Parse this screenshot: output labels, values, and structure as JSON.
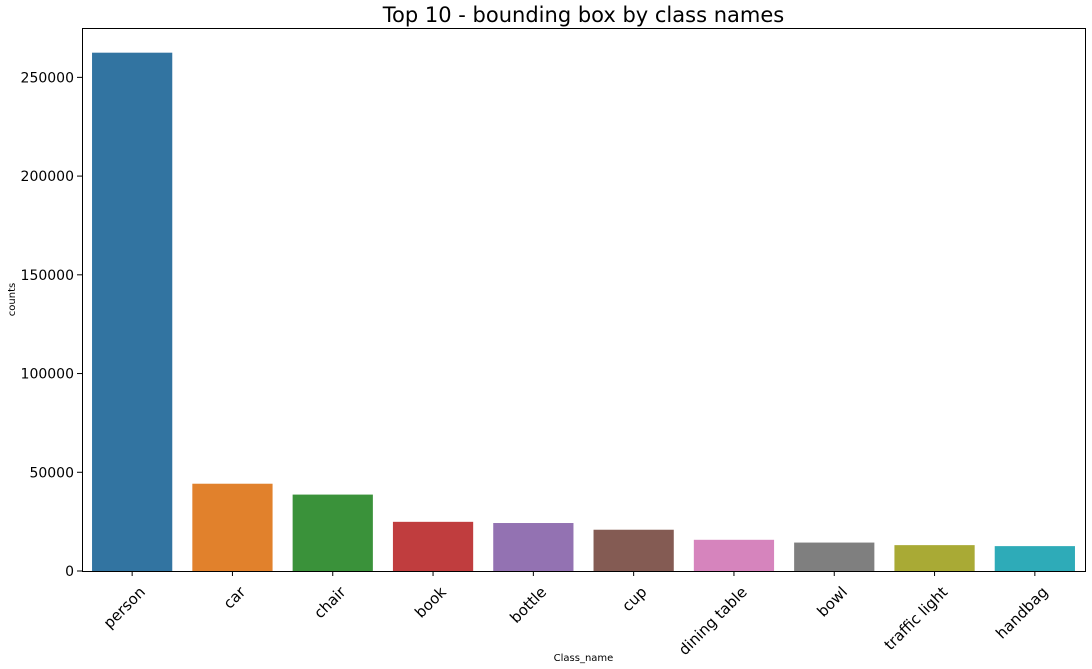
{
  "chart_data": {
    "type": "bar",
    "title": "Top 10 - bounding box by class names",
    "xlabel": "Class_name",
    "ylabel": "counts",
    "categories": [
      "person",
      "car",
      "chair",
      "book",
      "bottle",
      "cup",
      "dining table",
      "bowl",
      "traffic light",
      "handbag"
    ],
    "values": [
      262500,
      44200,
      38700,
      24900,
      24300,
      20900,
      15800,
      14400,
      13100,
      12600
    ],
    "colors": [
      "#3274a1",
      "#e1812c",
      "#3a923a",
      "#c03d3e",
      "#9372b2",
      "#845b53",
      "#d684bd",
      "#7f7f7f",
      "#a9aa35",
      "#2eabb8"
    ],
    "ylim": [
      0,
      275000
    ],
    "yticks": [
      0,
      50000,
      100000,
      150000,
      200000,
      250000
    ],
    "x_tick_rotation": 45,
    "grid": false,
    "legend": false
  }
}
